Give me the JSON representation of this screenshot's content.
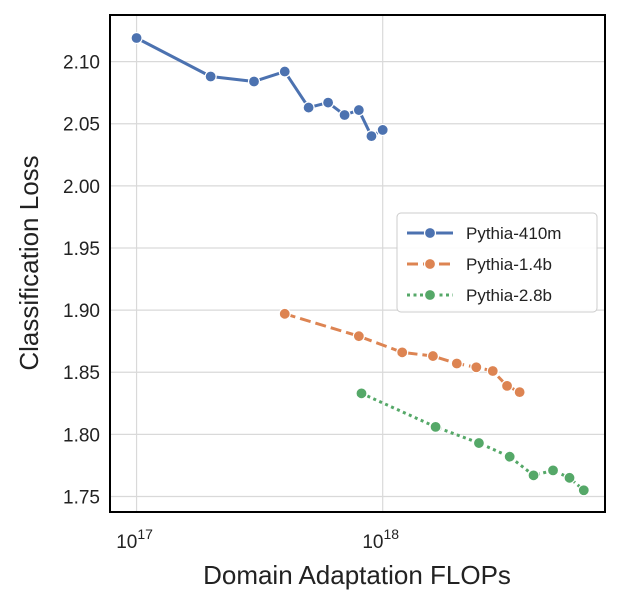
{
  "chart_data": {
    "type": "line",
    "xlabel": "Domain Adaptation FLOPs",
    "ylabel": "Classification Loss",
    "xscale": "log",
    "xlim": [
      7.8e+16,
      8e+18
    ],
    "ylim": [
      1.7375,
      2.1375
    ],
    "x_ticks": [
      {
        "value": 1e+17,
        "base": "10",
        "exp": "17"
      },
      {
        "value": 1e+18,
        "base": "10",
        "exp": "18"
      }
    ],
    "y_ticks": [
      {
        "value": 1.75,
        "label": "1.75"
      },
      {
        "value": 1.8,
        "label": "1.80"
      },
      {
        "value": 1.85,
        "label": "1.85"
      },
      {
        "value": 1.9,
        "label": "1.90"
      },
      {
        "value": 1.95,
        "label": "1.95"
      },
      {
        "value": 2.0,
        "label": "2.00"
      },
      {
        "value": 2.05,
        "label": "2.05"
      },
      {
        "value": 2.1,
        "label": "2.10"
      }
    ],
    "grid": true,
    "legend_position": "center-right",
    "series": [
      {
        "name": "Pythia-410m",
        "color": "#4c72b0",
        "linestyle": "solid",
        "x": [
          1e+17,
          2e+17,
          3e+17,
          4e+17,
          5e+17,
          6e+17,
          7e+17,
          8e+17,
          9e+17,
          1e+18
        ],
        "y": [
          2.119,
          2.088,
          2.084,
          2.092,
          2.063,
          2.067,
          2.057,
          2.061,
          2.04,
          2.045
        ]
      },
      {
        "name": "Pythia-1.4b",
        "color": "#dd8452",
        "linestyle": "dashed",
        "x": [
          4e+17,
          8e+17,
          1.2e+18,
          1.6e+18,
          2e+18,
          2.4e+18,
          2.8e+18,
          3.2e+18,
          3.6e+18
        ],
        "y": [
          1.897,
          1.879,
          1.866,
          1.863,
          1.857,
          1.854,
          1.851,
          1.839,
          1.834
        ]
      },
      {
        "name": "Pythia-2.8b",
        "color": "#55a868",
        "linestyle": "dotted",
        "x": [
          8.2e+17,
          1.64e+18,
          2.46e+18,
          3.28e+18,
          4.1e+18,
          4.92e+18,
          5.74e+18,
          6.56e+18
        ],
        "y": [
          1.833,
          1.806,
          1.793,
          1.782,
          1.767,
          1.771,
          1.765,
          1.755
        ]
      }
    ]
  }
}
